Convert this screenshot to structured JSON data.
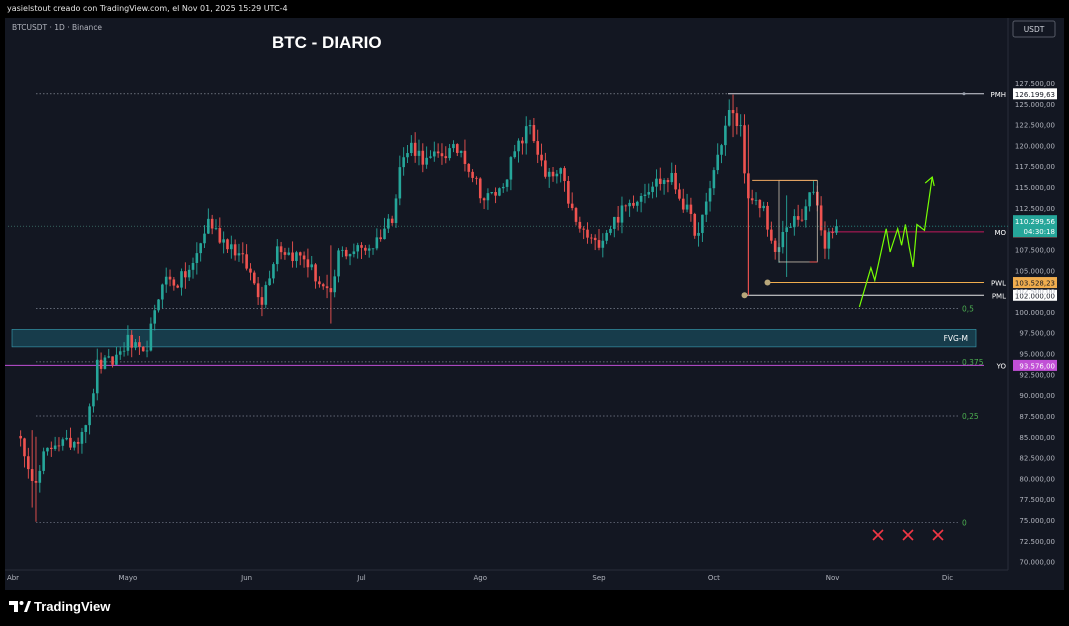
{
  "header": {
    "text": "yasielstout creado con TradingView.com, el Nov 01, 2025 15:29 UTC-4"
  },
  "symbol_label": "BTCUSDT · 1D · Binance",
  "title": "BTC - DIARIO",
  "currency_button": "USDT",
  "brand": "TradingView",
  "colors": {
    "up": "#26a69a",
    "down": "#ef5350",
    "fvg": "#1d6b7e",
    "projection": "#76ff03",
    "pwl": "#f0ad4e",
    "yo": "#c14fd6",
    "box_top": "#f0a860",
    "box_side": "#c9c0b0"
  },
  "chart_data": {
    "type": "candlestick",
    "title": "BTC - DIARIO",
    "x_ticks": [
      "Abr",
      "Mayo",
      "Jun",
      "Jul",
      "Ago",
      "Sep",
      "Oct",
      "Nov",
      "Dic"
    ],
    "x_tick_dates": [
      "2025-04-01",
      "2025-05-01",
      "2025-06-01",
      "2025-07-01",
      "2025-08-01",
      "2025-09-01",
      "2025-10-01",
      "2025-11-01",
      "2025-12-01"
    ],
    "y_ticks": [
      70000,
      72500,
      75000,
      77500,
      80000,
      82500,
      85000,
      87500,
      90000,
      92500,
      95000,
      97500,
      100000,
      102500,
      105000,
      107500,
      110000,
      112500,
      115000,
      117500,
      120000,
      122500,
      125000,
      127500
    ],
    "y_tick_labels": [
      "70.000,00",
      "72.500,00",
      "75.000,00",
      "77.500,00",
      "80.000,00",
      "82.500,00",
      "85.000,00",
      "87.500,00",
      "90.000,00",
      "92.500,00",
      "95.000,00",
      "97.500,00",
      "100.000,00",
      "102.500,00",
      "105.000,00",
      "107.500,00",
      "110.000,00",
      "112.500,00",
      "115.000,00",
      "117.500,00",
      "120.000,00",
      "122.500,00",
      "125.000,00",
      "127.500,00"
    ],
    "ylim": [
      69000,
      130500
    ],
    "close_series": [
      {
        "date": "2025-04-01",
        "close": 85000
      },
      {
        "date": "2025-04-04",
        "close": 83500
      },
      {
        "date": "2025-04-07",
        "close": 79000
      },
      {
        "date": "2025-04-09",
        "close": 82500
      },
      {
        "date": "2025-04-12",
        "close": 84500
      },
      {
        "date": "2025-04-15",
        "close": 84000
      },
      {
        "date": "2025-04-18",
        "close": 85000
      },
      {
        "date": "2025-04-21",
        "close": 88000
      },
      {
        "date": "2025-04-23",
        "close": 93500
      },
      {
        "date": "2025-04-27",
        "close": 94000
      },
      {
        "date": "2025-05-01",
        "close": 96500
      },
      {
        "date": "2025-05-05",
        "close": 94500
      },
      {
        "date": "2025-05-08",
        "close": 99500
      },
      {
        "date": "2025-05-10",
        "close": 104000
      },
      {
        "date": "2025-05-14",
        "close": 103500
      },
      {
        "date": "2025-05-18",
        "close": 105500
      },
      {
        "date": "2025-05-22",
        "close": 111000
      },
      {
        "date": "2025-05-25",
        "close": 109000
      },
      {
        "date": "2025-05-28",
        "close": 108000
      },
      {
        "date": "2025-06-01",
        "close": 105500
      },
      {
        "date": "2025-06-05",
        "close": 101500
      },
      {
        "date": "2025-06-09",
        "close": 108000
      },
      {
        "date": "2025-06-12",
        "close": 107000
      },
      {
        "date": "2025-06-16",
        "close": 106500
      },
      {
        "date": "2025-06-20",
        "close": 103500
      },
      {
        "date": "2025-06-23",
        "close": 101500
      },
      {
        "date": "2025-06-25",
        "close": 107000
      },
      {
        "date": "2025-06-30",
        "close": 107500
      },
      {
        "date": "2025-07-04",
        "close": 108000
      },
      {
        "date": "2025-07-09",
        "close": 111500
      },
      {
        "date": "2025-07-11",
        "close": 117500
      },
      {
        "date": "2025-07-14",
        "close": 120000
      },
      {
        "date": "2025-07-18",
        "close": 118000
      },
      {
        "date": "2025-07-22",
        "close": 119000
      },
      {
        "date": "2025-07-27",
        "close": 119500
      },
      {
        "date": "2025-08-02",
        "close": 113500
      },
      {
        "date": "2025-08-06",
        "close": 114500
      },
      {
        "date": "2025-08-10",
        "close": 119000
      },
      {
        "date": "2025-08-14",
        "close": 122500
      },
      {
        "date": "2025-08-18",
        "close": 116000
      },
      {
        "date": "2025-08-22",
        "close": 116500
      },
      {
        "date": "2025-08-26",
        "close": 110500
      },
      {
        "date": "2025-08-31",
        "close": 108000
      },
      {
        "date": "2025-09-05",
        "close": 111000
      },
      {
        "date": "2025-09-10",
        "close": 113500
      },
      {
        "date": "2025-09-15",
        "close": 115500
      },
      {
        "date": "2025-09-20",
        "close": 116000
      },
      {
        "date": "2025-09-24",
        "close": 112000
      },
      {
        "date": "2025-09-27",
        "close": 109000
      },
      {
        "date": "2025-10-01",
        "close": 117000
      },
      {
        "date": "2025-10-05",
        "close": 124000
      },
      {
        "date": "2025-10-08",
        "close": 122000
      },
      {
        "date": "2025-10-10",
        "close": 113000
      },
      {
        "date": "2025-10-14",
        "close": 112500
      },
      {
        "date": "2025-10-17",
        "close": 106500
      },
      {
        "date": "2025-10-20",
        "close": 110500
      },
      {
        "date": "2025-10-24",
        "close": 111000
      },
      {
        "date": "2025-10-27",
        "close": 115000
      },
      {
        "date": "2025-10-30",
        "close": 108000
      },
      {
        "date": "2025-11-01",
        "close": 110300
      }
    ],
    "levels": [
      {
        "name": "PMH",
        "price": 126199.63,
        "label": "126.199,63"
      },
      {
        "name": "MO",
        "price": 109608.01,
        "label": "109.608,01"
      },
      {
        "name": "PWL",
        "price": 103528.23,
        "label": "103.528,23"
      },
      {
        "name": "PML",
        "price": 102000.0,
        "label": "102.000,00"
      },
      {
        "name": "YO",
        "price": 93576.0,
        "label": "93.576,00"
      }
    ],
    "current_price": {
      "label": "110.299,56",
      "countdown": "04:30:18"
    },
    "fib_levels": [
      {
        "label": "0,5",
        "price": 100400
      },
      {
        "label": "0,375",
        "price": 94000
      },
      {
        "label": "0,25",
        "price": 87500
      },
      {
        "label": "0",
        "price": 74700
      }
    ],
    "zones": [
      {
        "name": "FVG-M",
        "from": 95800,
        "to": 97900
      }
    ],
    "rejected_markers": 3
  }
}
